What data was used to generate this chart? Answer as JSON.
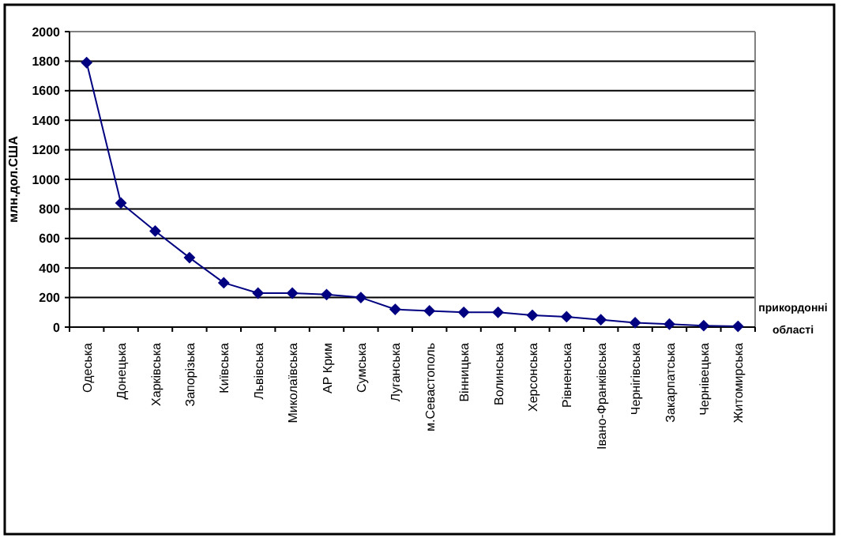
{
  "chart_data": {
    "type": "line",
    "ylabel": "млн.дол.США",
    "xlabel": "прикордонні області",
    "categories": [
      "Одеська",
      "Донецька",
      "Харківська",
      "Запорізька",
      "Київська",
      "Львівська",
      "Миколаївська",
      "АР Крим",
      "Сумська",
      "Луганська",
      "м.Севастополь",
      "Вінницька",
      "Волинська",
      "Херсонська",
      "Рівненська",
      "Івано-Франківська",
      "Чернігівська",
      "Закарпатська",
      "Чернівецька",
      "Житомирська"
    ],
    "series": [
      {
        "color": "#000080",
        "values": [
          1790,
          840,
          650,
          470,
          300,
          230,
          230,
          220,
          200,
          120,
          110,
          100,
          100,
          80,
          70,
          50,
          30,
          20,
          10,
          5
        ]
      }
    ],
    "ylim": [
      0,
      2000
    ],
    "yticks": [
      0,
      200,
      400,
      600,
      800,
      1000,
      1200,
      1400,
      1600,
      1800,
      2000
    ],
    "grid": "y",
    "marker": "diamond",
    "line_style": "solid"
  }
}
